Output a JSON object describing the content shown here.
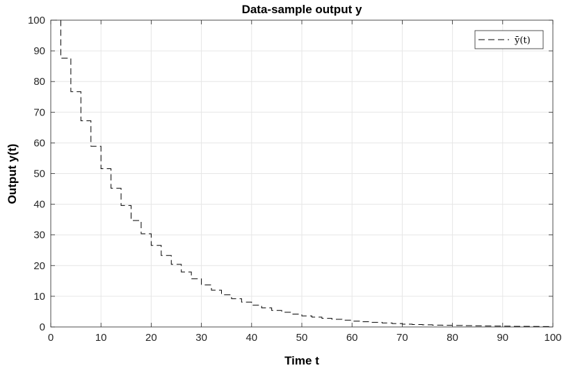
{
  "chart_data": {
    "type": "line",
    "title": "Data-sample output y",
    "xlabel": "Time t",
    "ylabel": "Output y(t)",
    "xlim": [
      0,
      100
    ],
    "ylim": [
      0,
      100
    ],
    "xticks": [
      "0",
      "10",
      "20",
      "30",
      "40",
      "50",
      "60",
      "70",
      "80",
      "90",
      "100"
    ],
    "yticks": [
      "0",
      "10",
      "20",
      "30",
      "40",
      "50",
      "60",
      "70",
      "80",
      "90",
      "100"
    ],
    "grid": true,
    "legend_position": "top-right",
    "colors": {
      "line": "#000000",
      "grid": "#e6e6e6",
      "axis": "#262626"
    },
    "series": [
      {
        "name": "ȳ(t)",
        "line_style": "dashed",
        "step": "post",
        "x": [
          0,
          2,
          4,
          6,
          8,
          10,
          12,
          14,
          16,
          18,
          20,
          22,
          24,
          26,
          28,
          30,
          32,
          34,
          36,
          38,
          40,
          42,
          44,
          46,
          48,
          50,
          52,
          54,
          56,
          58,
          60,
          62,
          64,
          66,
          68,
          70,
          72,
          74,
          76,
          78,
          80,
          82,
          84,
          86,
          88,
          90,
          92,
          94,
          96,
          98,
          100
        ],
        "y": [
          100,
          87.6,
          76.7,
          67.2,
          58.9,
          51.6,
          45.2,
          39.6,
          34.7,
          30.4,
          26.6,
          23.3,
          20.4,
          17.9,
          15.7,
          13.7,
          12.0,
          10.5,
          9.2,
          8.1,
          7.1,
          6.2,
          5.4,
          4.8,
          4.2,
          3.6,
          3.2,
          2.8,
          2.5,
          2.2,
          1.9,
          1.7,
          1.5,
          1.3,
          1.1,
          0.9,
          0.8,
          0.7,
          0.6,
          0.55,
          0.48,
          0.42,
          0.37,
          0.32,
          0.28,
          0.25,
          0.21,
          0.19,
          0.16,
          0.14,
          0.12
        ]
      }
    ]
  }
}
